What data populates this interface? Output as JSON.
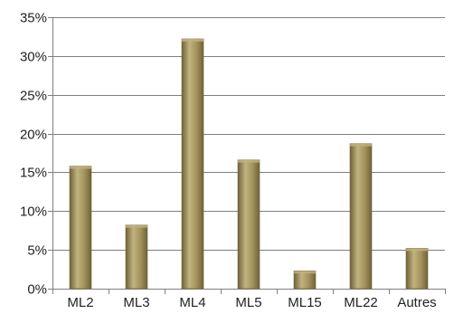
{
  "chart_data": {
    "type": "bar",
    "categories": [
      "ML2",
      "ML3",
      "ML4",
      "ML5",
      "ML15",
      "ML22",
      "Autres"
    ],
    "values": [
      15.8,
      8.2,
      32.2,
      16.6,
      2.3,
      18.7,
      5.2
    ],
    "ylim": [
      0,
      35
    ],
    "yticks": [
      "0%",
      "5%",
      "10%",
      "15%",
      "20%",
      "25%",
      "30%",
      "35%"
    ],
    "ytick_values": [
      0,
      5,
      10,
      15,
      20,
      25,
      30,
      35
    ],
    "grid": true,
    "legend": "none",
    "colors": {
      "bar": "#a0905a",
      "bar_dark": "#6e6237",
      "bar_light": "#c2b27f",
      "grid": "#7f7f7f"
    }
  }
}
